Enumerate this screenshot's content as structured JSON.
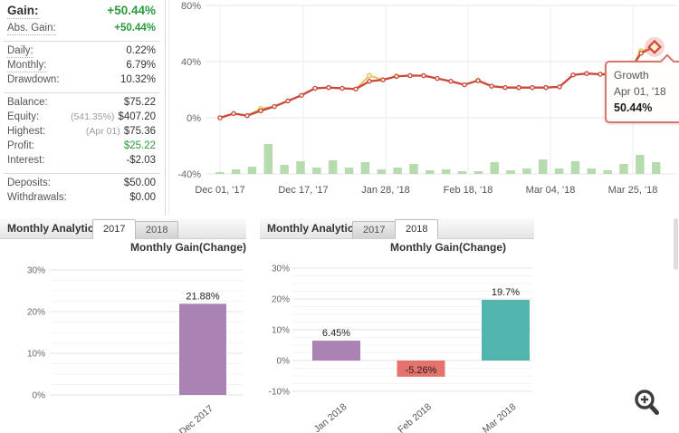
{
  "colors": {
    "positive_green": "#2a9b3d",
    "growth_line": "#c9493d",
    "growth_line_secondary": "#e5bd4e",
    "activity_bar_green": "#b5dbae",
    "bar_purple": "#ab82b4",
    "bar_red": "#e5736b",
    "bar_teal": "#52b5ad",
    "tooltip_border": "#d5766c"
  },
  "stats": {
    "gain": {
      "label": "Gain:",
      "value": "+50.44%"
    },
    "abs_gain": {
      "label": "Abs. Gain:",
      "value": "+50.44%"
    },
    "daily": {
      "label": "Daily:",
      "value": "0.22%"
    },
    "monthly": {
      "label": "Monthly:",
      "value": "6.79%"
    },
    "drawdown": {
      "label": "Drawdown:",
      "value": "10.32%"
    },
    "balance": {
      "label": "Balance:",
      "value": "$75.22"
    },
    "equity": {
      "label": "Equity:",
      "prefix": "(541.35%)",
      "value": "$407.20"
    },
    "highest": {
      "label": "Highest:",
      "prefix": "(Apr 01)",
      "value": "$75.36"
    },
    "profit": {
      "label": "Profit:",
      "value": "$25.22"
    },
    "interest": {
      "label": "Interest:",
      "value": "-$2.03"
    },
    "deposits": {
      "label": "Deposits:",
      "value": "$50.00"
    },
    "withdrawals": {
      "label": "Withdrawals:",
      "value": "$0.00"
    }
  },
  "growth_tooltip": {
    "title": "Growth",
    "date": "Apr 01, '18",
    "value": "50.44%"
  },
  "panels": {
    "left": {
      "title": "Monthly Analytics",
      "tabs": [
        "2017",
        "2018"
      ],
      "active_tab": "2017"
    },
    "right": {
      "title": "Monthly Analytics",
      "tabs": [
        "2017",
        "2018"
      ],
      "active_tab": "2018"
    }
  },
  "icons": {
    "zoom_button": "zoom-in-magnifier-icon"
  },
  "chart_data": [
    {
      "id": "growth-history",
      "type": "line",
      "title": "Growth",
      "ylim": [
        -40,
        80
      ],
      "grid": "on",
      "legend": "none",
      "yticks": [
        {
          "v": 80,
          "label": "80%"
        },
        {
          "v": 40,
          "label": "40%"
        },
        {
          "v": 0,
          "label": "0%"
        },
        {
          "v": -40,
          "label": "-40%"
        }
      ],
      "xticks": [
        "Dec 01, '17",
        "Dec 17, '17",
        "Jan 28, '18",
        "Feb 18, '18",
        "Mar 04, '18",
        "Mar 25, '18"
      ],
      "series": [
        {
          "name": "growth-secondary",
          "color": "#e5bd4e",
          "values": [
            0,
            3,
            1.5,
            6.5,
            8,
            12,
            16,
            21,
            21.5,
            21,
            20.5,
            30,
            27,
            29.5,
            30,
            30,
            28,
            26,
            23.5,
            26.5,
            22.5,
            21.5,
            21.5,
            21.5,
            21.5,
            22,
            30.5,
            31.5,
            31,
            31,
            31,
            47.5,
            50.44
          ]
        },
        {
          "name": "growth",
          "color": "#c9493d",
          "values": [
            0,
            3,
            1.5,
            5,
            8,
            12,
            16,
            21,
            21.5,
            21,
            20.5,
            26,
            27,
            29.5,
            30,
            30,
            28,
            26,
            23.5,
            26.5,
            22.5,
            21.5,
            21.5,
            21.5,
            21.5,
            22,
            30.5,
            31.5,
            31,
            31,
            31,
            46,
            50.44
          ]
        }
      ],
      "yellow_marker_indexes": [
        3,
        11,
        13,
        19,
        22,
        31
      ],
      "volume_bars": {
        "name": "activity",
        "color": "#b5dbae",
        "heights": [
          2,
          5,
          8,
          33,
          10,
          14,
          7,
          15,
          7,
          13,
          5,
          7,
          11,
          4,
          5,
          3,
          3,
          13,
          4,
          6,
          16,
          6,
          14,
          6,
          4,
          11,
          21,
          13
        ]
      },
      "highlight": {
        "point": "last",
        "value": "50.44%",
        "date": "Apr 01, '18"
      }
    },
    {
      "id": "monthly-gain-2017",
      "type": "bar",
      "title": "Monthly Gain(Change)",
      "categories": [
        "Dec 2017"
      ],
      "values": [
        21.88
      ],
      "bar_labels": [
        "21.88%"
      ],
      "bar_colors": [
        "#ab82b4"
      ],
      "ylim": [
        0,
        30
      ],
      "yticks": [
        {
          "v": 30,
          "label": "30%"
        },
        {
          "v": 20,
          "label": "20%"
        },
        {
          "v": 10,
          "label": "10%"
        },
        {
          "v": 0,
          "label": "0%"
        }
      ]
    },
    {
      "id": "monthly-gain-2018",
      "type": "bar",
      "title": "Monthly Gain(Change)",
      "categories": [
        "Jan 2018",
        "Feb 2018",
        "Mar 2018"
      ],
      "values": [
        6.45,
        -5.26,
        19.7
      ],
      "bar_labels": [
        "6.45%",
        "-5.26%",
        "19.7%"
      ],
      "bar_colors": [
        "#ab82b4",
        "#e5736b",
        "#52b5ad"
      ],
      "ylim": [
        -10,
        30
      ],
      "yticks": [
        {
          "v": 30,
          "label": "30%"
        },
        {
          "v": 20,
          "label": "20%"
        },
        {
          "v": 10,
          "label": "10%"
        },
        {
          "v": 0,
          "label": "0%"
        },
        {
          "v": -10,
          "label": "-10%"
        }
      ]
    }
  ]
}
